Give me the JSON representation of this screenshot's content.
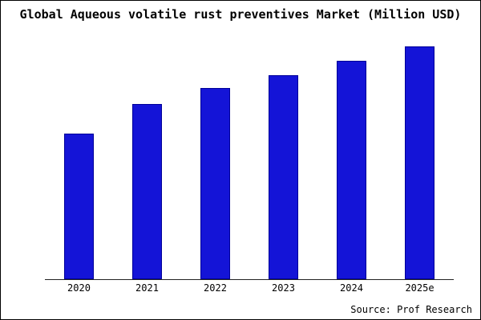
{
  "title": "Global Aqueous volatile rust preventives Market (Million USD)",
  "source": "Source: Prof Research",
  "colors": {
    "bar_fill": "#1414d7",
    "bar_border": "#000099",
    "axis": "#222222",
    "background": "#ffffff",
    "frame_border": "#000000"
  },
  "chart_data": {
    "type": "bar",
    "title": "Global Aqueous volatile rust preventives Market (Million USD)",
    "categories": [
      "2020",
      "2021",
      "2022",
      "2023",
      "2024",
      "2025e"
    ],
    "values": [
      100,
      120,
      131,
      140,
      150,
      160
    ],
    "values_note": "y-axis unlabeled in source image; values are relative estimates indexed to 2020 = 100",
    "xlabel": "",
    "ylabel": "",
    "ylim": [
      0,
      168
    ],
    "grid": false,
    "legend": false,
    "annotation": "Source: Prof Research"
  }
}
